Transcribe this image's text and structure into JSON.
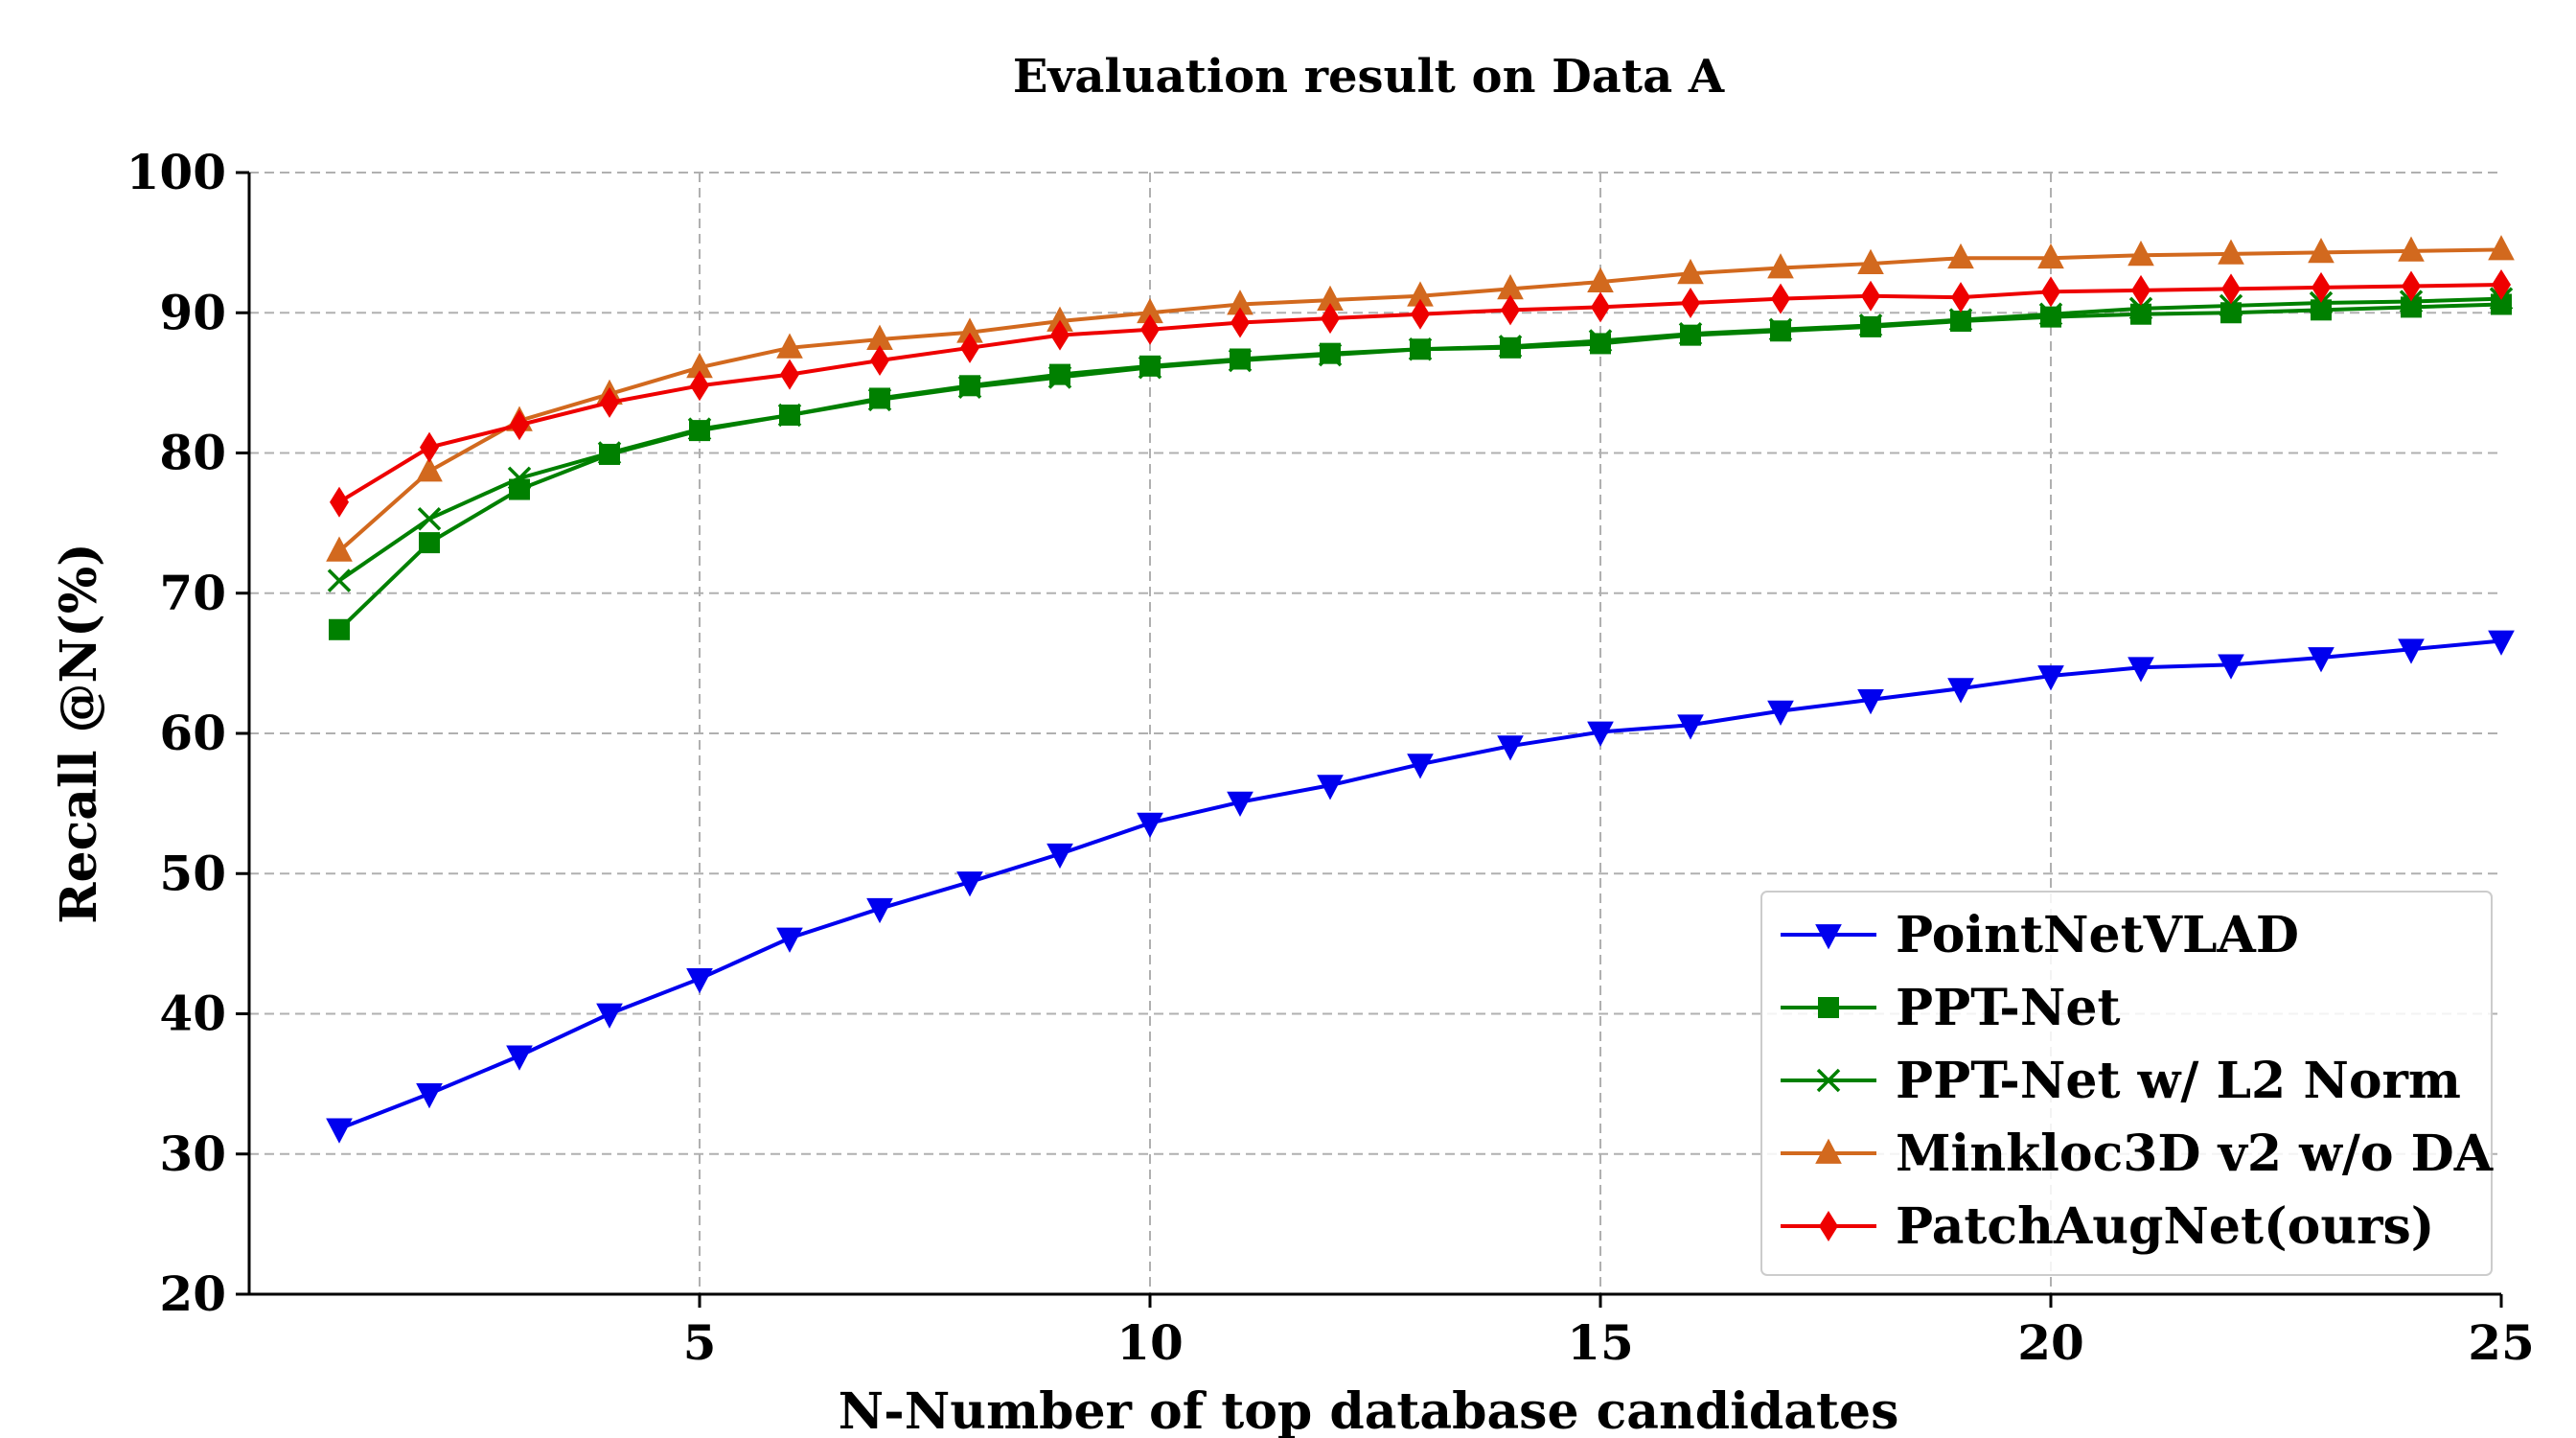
{
  "chart_data": {
    "type": "line",
    "title": "Evaluation result on Data A",
    "xlabel": "N-Number of top database candidates",
    "ylabel": "Recall @N(%)",
    "xlim": [
      0,
      25
    ],
    "ylim": [
      20,
      100
    ],
    "xticks": [
      5,
      10,
      15,
      20,
      25
    ],
    "yticks": [
      20,
      30,
      40,
      50,
      60,
      70,
      80,
      90,
      100
    ],
    "grid": true,
    "legend_position": "lower-right",
    "x": [
      1,
      2,
      3,
      4,
      5,
      6,
      7,
      8,
      9,
      10,
      11,
      12,
      13,
      14,
      15,
      16,
      17,
      18,
      19,
      20,
      21,
      22,
      23,
      24,
      25
    ],
    "series": [
      {
        "name": "PointNetVLAD",
        "color": "#0000ee",
        "marker": "triangle-down",
        "values": [
          31.8,
          34.3,
          37.0,
          40.0,
          42.5,
          45.4,
          47.5,
          49.4,
          51.4,
          53.6,
          55.1,
          56.3,
          57.8,
          59.1,
          60.1,
          60.6,
          61.6,
          62.4,
          63.2,
          64.1,
          64.7,
          64.9,
          65.4,
          66.0,
          66.6
        ]
      },
      {
        "name": "PPT-Net",
        "color": "#008000",
        "marker": "square",
        "values": [
          67.4,
          73.6,
          77.4,
          79.9,
          81.6,
          82.7,
          83.9,
          84.8,
          85.6,
          86.2,
          86.7,
          87.1,
          87.4,
          87.5,
          87.8,
          88.4,
          88.7,
          89.0,
          89.4,
          89.7,
          89.9,
          90.0,
          90.2,
          90.4,
          90.6
        ]
      },
      {
        "name": "PPT-Net w/ L2 Norm",
        "color": "#008000",
        "marker": "x",
        "values": [
          70.9,
          75.3,
          78.2,
          80.0,
          81.7,
          82.7,
          83.8,
          84.7,
          85.4,
          86.1,
          86.6,
          87.0,
          87.4,
          87.6,
          88.0,
          88.5,
          88.8,
          89.1,
          89.5,
          89.9,
          90.3,
          90.5,
          90.7,
          90.8,
          91.0
        ]
      },
      {
        "name": "Minkloc3D v2 w/o DA",
        "color": "#d2691e",
        "marker": "triangle-up",
        "values": [
          73.0,
          78.7,
          82.3,
          84.2,
          86.1,
          87.5,
          88.1,
          88.6,
          89.4,
          90.0,
          90.6,
          90.9,
          91.2,
          91.7,
          92.2,
          92.8,
          93.2,
          93.5,
          93.9,
          93.9,
          94.1,
          94.2,
          94.3,
          94.4,
          94.5
        ]
      },
      {
        "name": "PatchAugNet(ours)",
        "color": "#ee0000",
        "marker": "diamond",
        "values": [
          76.5,
          80.4,
          82.0,
          83.6,
          84.8,
          85.6,
          86.6,
          87.5,
          88.4,
          88.8,
          89.3,
          89.6,
          89.9,
          90.2,
          90.4,
          90.7,
          91.0,
          91.2,
          91.1,
          91.5,
          91.6,
          91.7,
          91.8,
          91.9,
          92.0
        ]
      }
    ]
  }
}
